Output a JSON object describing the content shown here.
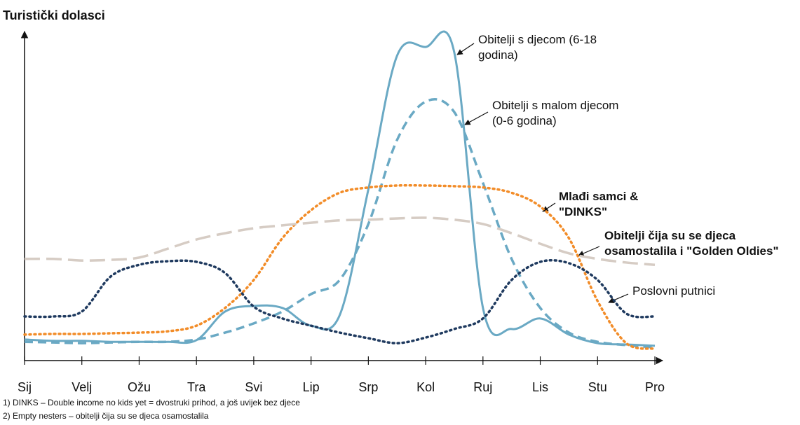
{
  "chart_data": {
    "type": "line",
    "title": "Turistički dolasci",
    "categories": [
      "Sij",
      null,
      "Velj",
      null,
      "Ožu",
      null,
      "Tra",
      null,
      "Svi",
      null,
      "Lip",
      null,
      "Srp",
      null,
      "Kol",
      null,
      "Ruj",
      null,
      "Lis",
      null,
      "Stu",
      null,
      "Pro"
    ],
    "ylim": [
      0,
      100
    ],
    "series": [
      {
        "name": "Obitelji s djecom (6-18 godina)",
        "color": "#6aa9c4",
        "style": "solid",
        "bold": false,
        "values": [
          6.4,
          6,
          6,
          5.7,
          5.7,
          5.7,
          6.2,
          14.9,
          16.6,
          16,
          10.6,
          13.8,
          52,
          92.6,
          95.3,
          93.6,
          16,
          9.6,
          12.8,
          7.9,
          5.3,
          4.9,
          4.5
        ]
      },
      {
        "name": "Obitelji s malom djecom (0-6 godina)",
        "color": "#6aa9c4",
        "style": "dashed",
        "bold": false,
        "values": [
          5.7,
          5.5,
          5.3,
          5.5,
          5.7,
          5.7,
          6.4,
          8.5,
          11.3,
          14.9,
          20.2,
          24.5,
          41.5,
          67,
          78.7,
          75.5,
          54,
          30.9,
          16,
          8.5,
          5.7,
          4.7,
          4
        ]
      },
      {
        "name": "Mlađi samci & \"DINKS\"",
        "color": "#f28c28",
        "style": "dotted",
        "bold": true,
        "values": [
          7.9,
          8.1,
          8.1,
          8.3,
          8.5,
          8.9,
          10.6,
          16,
          24.5,
          37.2,
          45.7,
          51,
          52.6,
          53.2,
          53.2,
          53,
          52.6,
          51,
          46.8,
          37.2,
          18.1,
          5.3,
          3.6
        ]
      },
      {
        "name": "Obitelji čija su se djeca osamostalila i \"Golden Oldies\"",
        "color": "#d6ccc4",
        "style": "longdash",
        "bold": true,
        "values": [
          30.9,
          30.9,
          30.4,
          30.6,
          31.3,
          34,
          36.8,
          38.7,
          40.2,
          41.1,
          41.9,
          42.6,
          42.8,
          43.2,
          43.4,
          42.8,
          41.5,
          38.7,
          35.5,
          32.6,
          30.9,
          29.8,
          29.1
        ]
      },
      {
        "name": "Poslovni putnici",
        "color": "#1f3a5f",
        "style": "dotted",
        "bold": false,
        "values": [
          13.4,
          13.4,
          14.9,
          25.5,
          29.1,
          30.2,
          30,
          26.6,
          16.4,
          12.8,
          10.6,
          8.5,
          6.8,
          5.3,
          7,
          9.6,
          12.8,
          24.5,
          30,
          29.6,
          24.5,
          14.3,
          13.4
        ]
      }
    ],
    "footnotes": [
      "1) DINKS – Double income no kids yet = dvostruki prihod, a još uvijek bez djece",
      "2) Empty nesters – obitelji čija su se djeca osamostalila"
    ]
  }
}
